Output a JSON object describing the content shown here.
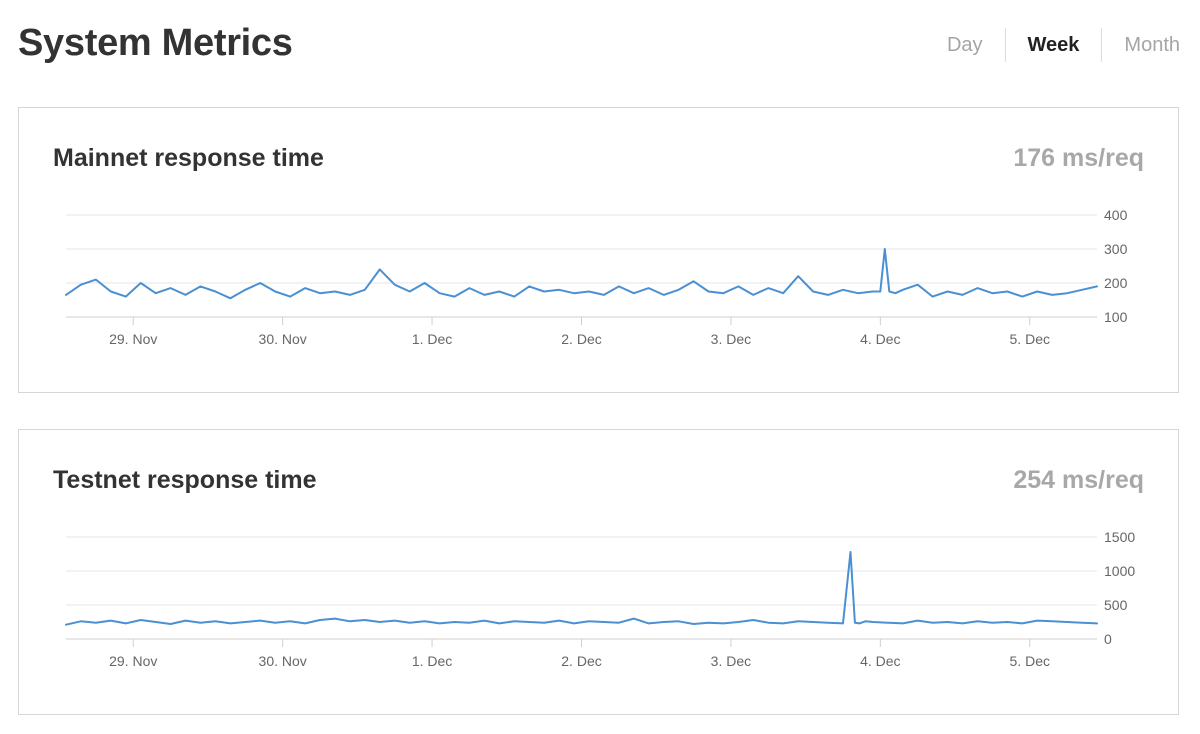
{
  "page": {
    "title": "System Metrics"
  },
  "range_tabs": [
    {
      "label": "Day",
      "active": false
    },
    {
      "label": "Week",
      "active": true
    },
    {
      "label": "Month",
      "active": false
    }
  ],
  "colors": {
    "line": "#4a90d2",
    "grid": "#e6e6e6",
    "axis": "#cfcfcf"
  },
  "cards": [
    {
      "title": "Mainnet response time",
      "metric": "176 ms/req"
    },
    {
      "title": "Testnet response time",
      "metric": "254 ms/req"
    }
  ],
  "chart_data": [
    {
      "type": "line",
      "title": "Mainnet response time",
      "xlabel": "",
      "ylabel": "",
      "x_range": [
        -0.45,
        6.45
      ],
      "ylim": [
        100,
        400
      ],
      "y_ticks": [
        100,
        200,
        300,
        400
      ],
      "x_ticks": [
        {
          "x": 0,
          "label": "29. Nov"
        },
        {
          "x": 1,
          "label": "30. Nov"
        },
        {
          "x": 2,
          "label": "1. Dec"
        },
        {
          "x": 3,
          "label": "2. Dec"
        },
        {
          "x": 4,
          "label": "3. Dec"
        },
        {
          "x": 5,
          "label": "4. Dec"
        },
        {
          "x": 6,
          "label": "5. Dec"
        }
      ],
      "grid": true,
      "series": [
        {
          "x": [
            -0.45,
            -0.35,
            -0.25,
            -0.15,
            -0.05,
            0.05,
            0.15,
            0.25,
            0.35,
            0.45,
            0.55,
            0.65,
            0.75,
            0.85,
            0.95,
            1.05,
            1.15,
            1.25,
            1.35,
            1.45,
            1.55,
            1.65,
            1.75,
            1.85,
            1.95,
            2.05,
            2.15,
            2.25,
            2.35,
            2.45,
            2.55,
            2.65,
            2.75,
            2.85,
            2.95,
            3.05,
            3.15,
            3.25,
            3.35,
            3.45,
            3.55,
            3.65,
            3.75,
            3.85,
            3.95,
            4.05,
            4.15,
            4.25,
            4.35,
            4.45,
            4.55,
            4.65,
            4.75,
            4.85,
            4.95,
            5.0,
            5.03,
            5.06,
            5.1,
            5.15,
            5.25,
            5.35,
            5.45,
            5.55,
            5.65,
            5.75,
            5.85,
            5.95,
            6.05,
            6.15,
            6.25,
            6.35,
            6.45
          ],
          "y": [
            165,
            195,
            210,
            175,
            160,
            200,
            170,
            185,
            165,
            190,
            175,
            155,
            180,
            200,
            175,
            160,
            185,
            170,
            175,
            165,
            180,
            240,
            195,
            175,
            200,
            170,
            160,
            185,
            165,
            175,
            160,
            190,
            175,
            180,
            170,
            175,
            165,
            190,
            170,
            185,
            165,
            180,
            205,
            175,
            170,
            190,
            165,
            185,
            170,
            220,
            175,
            165,
            180,
            170,
            175,
            175,
            300,
            175,
            170,
            180,
            195,
            160,
            175,
            165,
            185,
            170,
            175,
            160,
            175,
            165,
            170,
            180,
            190
          ]
        }
      ]
    },
    {
      "type": "line",
      "title": "Testnet response time",
      "xlabel": "",
      "ylabel": "",
      "x_range": [
        -0.45,
        6.45
      ],
      "ylim": [
        0,
        1500
      ],
      "y_ticks": [
        0,
        500,
        1000,
        1500
      ],
      "x_ticks": [
        {
          "x": 0,
          "label": "29. Nov"
        },
        {
          "x": 1,
          "label": "30. Nov"
        },
        {
          "x": 2,
          "label": "1. Dec"
        },
        {
          "x": 3,
          "label": "2. Dec"
        },
        {
          "x": 4,
          "label": "3. Dec"
        },
        {
          "x": 5,
          "label": "4. Dec"
        },
        {
          "x": 6,
          "label": "5. Dec"
        }
      ],
      "grid": true,
      "series": [
        {
          "x": [
            -0.45,
            -0.35,
            -0.25,
            -0.15,
            -0.05,
            0.05,
            0.15,
            0.25,
            0.35,
            0.45,
            0.55,
            0.65,
            0.75,
            0.85,
            0.95,
            1.05,
            1.15,
            1.25,
            1.35,
            1.45,
            1.55,
            1.65,
            1.75,
            1.85,
            1.95,
            2.05,
            2.15,
            2.25,
            2.35,
            2.45,
            2.55,
            2.65,
            2.75,
            2.85,
            2.95,
            3.05,
            3.15,
            3.25,
            3.35,
            3.45,
            3.55,
            3.65,
            3.75,
            3.85,
            3.95,
            4.05,
            4.15,
            4.25,
            4.35,
            4.45,
            4.55,
            4.65,
            4.75,
            4.8,
            4.83,
            4.86,
            4.9,
            4.95,
            5.05,
            5.15,
            5.25,
            5.35,
            5.45,
            5.55,
            5.65,
            5.75,
            5.85,
            5.95,
            6.05,
            6.15,
            6.25,
            6.35,
            6.45
          ],
          "y": [
            210,
            260,
            240,
            270,
            230,
            280,
            250,
            220,
            270,
            240,
            260,
            230,
            250,
            270,
            240,
            260,
            230,
            280,
            300,
            260,
            280,
            250,
            270,
            240,
            260,
            230,
            250,
            240,
            270,
            230,
            260,
            250,
            240,
            270,
            230,
            260,
            250,
            240,
            300,
            230,
            250,
            260,
            220,
            240,
            230,
            250,
            280,
            240,
            230,
            260,
            250,
            240,
            230,
            1280,
            240,
            230,
            260,
            250,
            240,
            230,
            270,
            240,
            250,
            230,
            260,
            240,
            250,
            230,
            270,
            260,
            250,
            240,
            230
          ]
        }
      ]
    }
  ]
}
